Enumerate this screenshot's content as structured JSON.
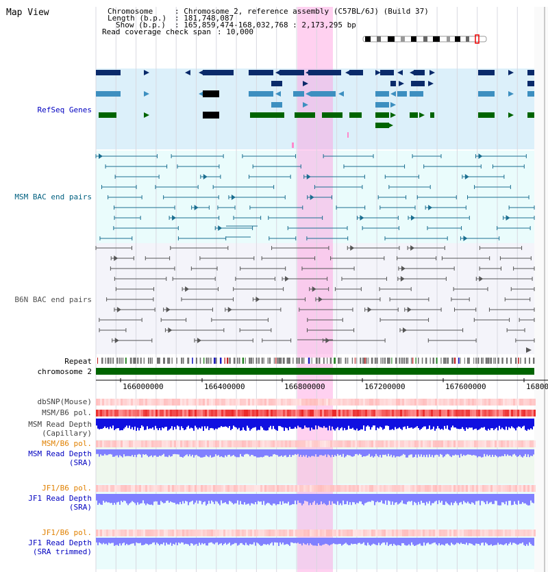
{
  "page_title": "Map View",
  "header": {
    "chromosome_key": "Chromosome",
    "chromosome_val": ": Chromosome 2, reference assembly (C57BL/6J) (Build 37)",
    "length_key": "Length (b.p.)",
    "length_val": ": 181,748,087",
    "show_key": "Show (b.p.)",
    "show_val": ": 165,859,474-168,032,768 : 2,173,295 bp",
    "coverage_key": "Read coverage check span",
    "coverage_val": ": 10,000"
  },
  "tracks": {
    "refseq": "RefSeq Genes",
    "msm_bac": "MSM BAC end pairs",
    "b6n_bac": "B6N BAC end pairs",
    "repeat": "Repeat",
    "chromosome": "chromosome 2",
    "dbsnp": "dbSNP(Mouse)",
    "msm_b6_pol": "MSM/B6 pol.",
    "msm_depth_cap_1": "MSM Read Depth",
    "msm_depth_cap_2": "(Capillary)",
    "msm_b6_pol_2": "MSM/B6 pol.",
    "msm_depth_sra_1": "MSM Read Depth",
    "msm_depth_sra_2": "(SRA)",
    "jf1_b6_pol": "JF1/B6 pol.",
    "jf1_depth_sra_1": "JF1 Read Depth",
    "jf1_depth_sra_2": "(SRA)",
    "jf1_b6_pol_2": "JF1/B6 pol.",
    "jf1_depth_trim_1": "JF1 Read Depth",
    "jf1_depth_trim_2": "(SRA trimmed)"
  },
  "axis": {
    "ticks": [
      "166000000",
      "166400000",
      "166800000",
      "167200000",
      "167600000",
      "16800"
    ]
  },
  "colors": {
    "refseq_label": "#0000c0",
    "msm_label": "#006080",
    "b6n_label": "#505050",
    "pol_label": "#e08000",
    "depth_label": "#0000c0",
    "highlight": "#ff99dd",
    "chromosome_bar": "#006400",
    "refseq_dark": "#0a2a6a",
    "refseq_mid": "#3d8fc0",
    "refseq_green": "#006400",
    "capillary_depth": "#1010e0",
    "sra_depth": "#8080ff"
  }
}
